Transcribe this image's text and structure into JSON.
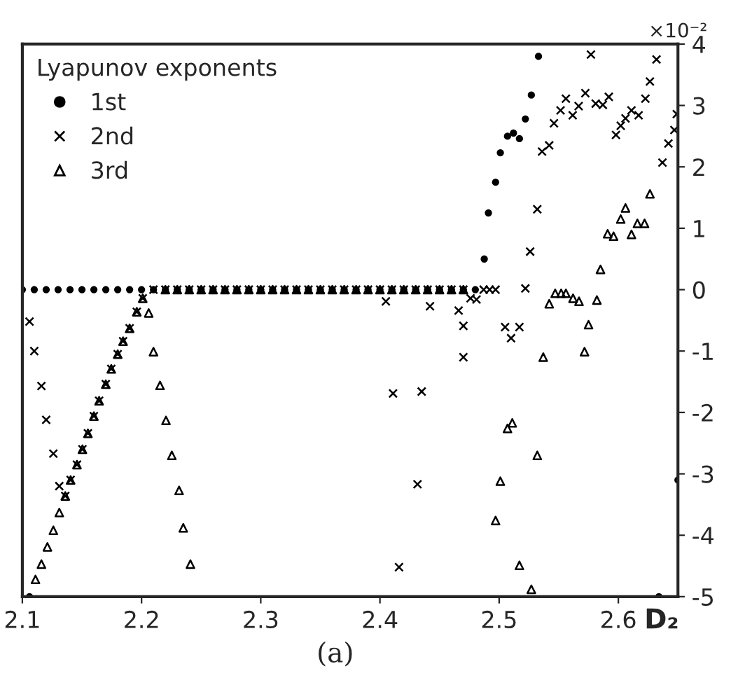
{
  "chart_data": {
    "type": "scatter",
    "legend_title": "Lyapunov exponents",
    "xlabel": "D₂",
    "annotations": [
      "×10⁻²",
      "(a)"
    ],
    "xlim": [
      2.1,
      2.65
    ],
    "xticks": [
      {
        "value": 2.1,
        "label": "2.1"
      },
      {
        "value": 2.2,
        "label": "2.2"
      },
      {
        "value": 2.3,
        "label": "2.3"
      },
      {
        "value": 2.4,
        "label": "2.4"
      },
      {
        "value": 2.5,
        "label": "2.5"
      },
      {
        "value": 2.6,
        "label": "2.6"
      }
    ],
    "ylim": [
      -5,
      4
    ],
    "yticks": [
      -5,
      -4,
      -3,
      -2,
      -1,
      0,
      1,
      2,
      3,
      4
    ],
    "grid": false,
    "legend": "top left",
    "series": [
      {
        "name": "1st",
        "color": "#000000",
        "marker": "circle",
        "x": [
          2.106,
          2.1,
          2.11,
          2.12,
          2.13,
          2.14,
          2.15,
          2.16,
          2.17,
          2.18,
          2.19,
          2.2,
          2.21,
          2.22,
          2.23,
          2.24,
          2.25,
          2.26,
          2.27,
          2.28,
          2.29,
          2.3,
          2.31,
          2.32,
          2.33,
          2.34,
          2.35,
          2.36,
          2.37,
          2.38,
          2.39,
          2.4,
          2.41,
          2.42,
          2.43,
          2.44,
          2.45,
          2.46,
          2.47,
          2.48,
          2.4875,
          2.491,
          2.497,
          2.501,
          2.507,
          2.512,
          2.517,
          2.522,
          2.527,
          2.533,
          2.634,
          2.65
        ],
        "values": [
          -5,
          0,
          0,
          0,
          0,
          0,
          0,
          0,
          0,
          0,
          0,
          0,
          0,
          0,
          0,
          0,
          0,
          0,
          0,
          0,
          0,
          0,
          0,
          0,
          0,
          0,
          0,
          0,
          0,
          0,
          0,
          0,
          0,
          0,
          0,
          0,
          0,
          0,
          0,
          0,
          0.5,
          1.25,
          1.75,
          2.23,
          2.5,
          2.55,
          2.46,
          2.78,
          3.17,
          3.8,
          -5,
          -3.1
        ]
      },
      {
        "name": "2nd",
        "color": "#000000",
        "marker": "cross",
        "x": [
          2.106,
          2.11,
          2.116,
          2.12,
          2.126,
          2.131,
          2.136,
          2.1405,
          2.1458,
          2.1504,
          2.155,
          2.16,
          2.1644,
          2.17,
          2.1746,
          2.18,
          2.1845,
          2.19,
          2.196,
          2.201,
          2.21,
          2.22,
          2.23,
          2.24,
          2.25,
          2.26,
          2.27,
          2.28,
          2.29,
          2.3,
          2.31,
          2.32,
          2.33,
          2.34,
          2.35,
          2.36,
          2.37,
          2.38,
          2.39,
          2.4,
          2.41,
          2.42,
          2.43,
          2.44,
          2.45,
          2.46,
          2.47,
          2.405,
          2.442,
          2.466,
          2.47,
          2.476,
          2.481,
          2.487,
          2.492,
          2.497,
          2.505,
          2.51,
          2.517,
          2.522,
          2.526,
          2.532,
          2.536,
          2.542,
          2.546,
          2.5515,
          2.556,
          2.5617,
          2.5667,
          2.5723,
          2.577,
          2.581,
          2.587,
          2.592,
          2.598,
          2.602,
          2.606,
          2.611,
          2.617,
          2.6227,
          2.6265,
          2.632,
          2.637,
          2.642,
          2.647,
          2.649,
          2.47,
          2.411,
          2.435,
          2.4315,
          2.416
        ],
        "values": [
          -0.52,
          -1.0,
          -1.57,
          -2.12,
          -2.67,
          -3.2,
          -3.36,
          -3.1,
          -2.85,
          -2.6,
          -2.34,
          -2.06,
          -1.81,
          -1.54,
          -1.29,
          -1.05,
          -0.84,
          -0.63,
          -0.36,
          -0.14,
          0,
          0,
          0,
          0,
          0,
          0,
          0,
          0,
          0,
          0,
          0,
          0,
          0,
          0,
          0,
          0,
          0,
          0,
          0,
          0,
          0,
          0,
          0,
          0,
          0,
          0,
          0,
          -0.19,
          -0.27,
          -0.34,
          -0.59,
          -0.14,
          -0.16,
          0,
          0,
          0,
          -0.61,
          -0.79,
          -0.61,
          0.02,
          0.62,
          1.31,
          2.25,
          2.35,
          2.71,
          2.92,
          3.11,
          2.84,
          2.99,
          3.2,
          3.83,
          3.03,
          3.01,
          3.14,
          2.52,
          2.67,
          2.79,
          2.92,
          2.84,
          3.11,
          3.39,
          3.75,
          2.07,
          2.38,
          2.6,
          2.86,
          -1.1,
          -1.69,
          -1.66,
          -3.17,
          -4.52
        ]
      },
      {
        "name": "3rd",
        "color": "#000000",
        "marker": "triangle",
        "x": [
          2.111,
          2.116,
          2.121,
          2.126,
          2.131,
          2.136,
          2.1405,
          2.1458,
          2.1504,
          2.155,
          2.16,
          2.1644,
          2.17,
          2.1746,
          2.18,
          2.1845,
          2.19,
          2.196,
          2.201,
          2.206,
          2.21,
          2.2155,
          2.2205,
          2.2254,
          2.2315,
          2.235,
          2.241,
          2.22,
          2.23,
          2.24,
          2.25,
          2.26,
          2.27,
          2.28,
          2.29,
          2.3,
          2.31,
          2.32,
          2.33,
          2.34,
          2.35,
          2.36,
          2.37,
          2.38,
          2.39,
          2.4,
          2.41,
          2.42,
          2.43,
          2.44,
          2.45,
          2.46,
          2.47,
          2.542,
          2.547,
          2.552,
          2.556,
          2.562,
          2.567,
          2.582,
          2.575,
          2.585,
          2.591,
          2.596,
          2.602,
          2.606,
          2.611,
          2.616,
          2.622,
          2.6265,
          2.537,
          2.5716,
          2.507,
          2.511,
          2.532,
          2.501,
          2.497,
          2.517,
          2.527
        ],
        "values": [
          -4.72,
          -4.47,
          -4.19,
          -3.92,
          -3.63,
          -3.36,
          -3.1,
          -2.85,
          -2.6,
          -2.34,
          -2.06,
          -1.81,
          -1.54,
          -1.29,
          -1.05,
          -0.84,
          -0.63,
          -0.36,
          -0.14,
          -0.38,
          -1.01,
          -1.56,
          -2.13,
          -2.7,
          -3.27,
          -3.88,
          -4.47,
          0,
          0,
          0,
          0,
          0,
          0,
          0,
          0,
          0,
          0,
          0,
          0,
          0,
          0,
          0,
          0,
          0,
          0,
          0,
          0,
          0,
          0,
          0,
          0,
          0,
          0,
          -0.23,
          -0.06,
          -0.06,
          -0.06,
          -0.14,
          -0.19,
          -0.17,
          -0.57,
          0.33,
          0.91,
          0.87,
          1.15,
          1.33,
          0.9,
          1.08,
          1.08,
          1.56,
          -1.1,
          -1.01,
          -2.26,
          -2.17,
          -2.7,
          -3.12,
          -3.76,
          -4.49,
          -4.88
        ]
      }
    ]
  }
}
